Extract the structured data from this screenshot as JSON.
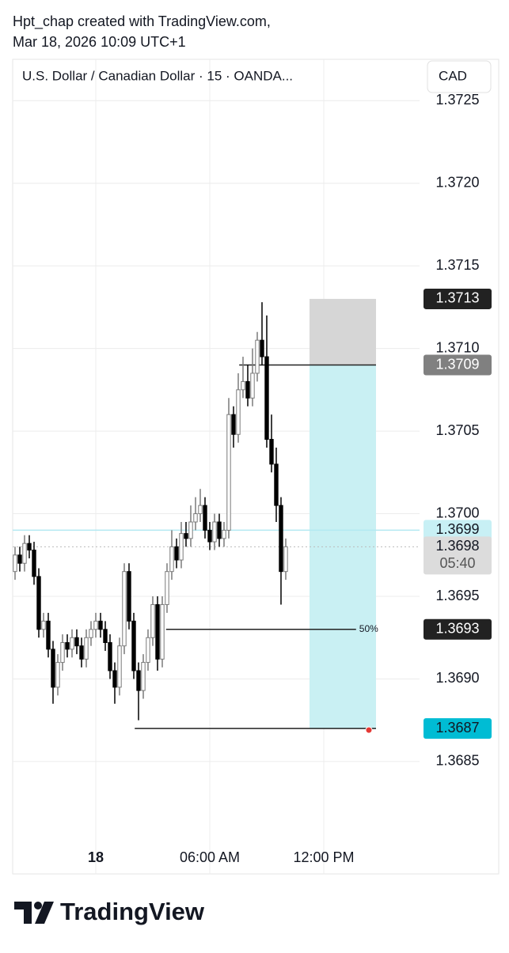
{
  "header": {
    "line1": "Hpt_chap created with TradingView.com,",
    "line2": "Mar 18, 2026 10:09 UTC+1"
  },
  "chart_data": {
    "type": "candlestick",
    "title": "U.S. Dollar / Canadian Dollar · 15 · OANDA...",
    "currency": "CAD",
    "open": [
      1.36965,
      1.36975,
      1.3697,
      1.36982,
      1.36978,
      1.36962,
      1.3693,
      1.36935,
      1.36918,
      1.36895,
      1.3691,
      1.36922,
      1.36918,
      1.36925,
      1.3692,
      1.36912,
      1.36925,
      1.3693,
      1.36935,
      1.3693,
      1.36922,
      1.36905,
      1.36895,
      1.3692,
      1.36965,
      1.36935,
      1.36905,
      1.36893,
      1.3691,
      1.36925,
      1.36945,
      1.36912,
      1.36945,
      1.36965,
      1.3698,
      1.36972,
      1.36988,
      1.36985,
      1.36995,
      1.37,
      1.37005,
      1.3699,
      1.36983,
      1.36995,
      1.36985,
      1.3699,
      1.3706,
      1.37048,
      1.37075,
      1.3708,
      1.3707,
      1.37085,
      1.37105,
      1.37095,
      1.37045,
      1.3703,
      1.37005,
      1.36965
    ],
    "high": [
      1.3698,
      1.3698,
      1.36987,
      1.36987,
      1.36983,
      1.36967,
      1.3694,
      1.3694,
      1.36923,
      1.36915,
      1.36927,
      1.36927,
      1.3693,
      1.3693,
      1.36925,
      1.3693,
      1.36935,
      1.3694,
      1.3694,
      1.36935,
      1.36927,
      1.3691,
      1.36925,
      1.3697,
      1.3697,
      1.3694,
      1.3691,
      1.36915,
      1.3693,
      1.3695,
      1.3695,
      1.3695,
      1.3697,
      1.3699,
      1.36985,
      1.36995,
      1.36995,
      1.37005,
      1.3701,
      1.37015,
      1.3701,
      1.36995,
      1.37,
      1.37,
      1.36995,
      1.3707,
      1.37065,
      1.37085,
      1.37095,
      1.3709,
      1.371,
      1.3711,
      1.37128,
      1.3712,
      1.3706,
      1.3704,
      1.3701,
      1.36985
    ],
    "low": [
      1.3696,
      1.36965,
      1.36965,
      1.36973,
      1.36957,
      1.36925,
      1.36925,
      1.36913,
      1.36885,
      1.3689,
      1.36905,
      1.36913,
      1.36913,
      1.36915,
      1.36907,
      1.36907,
      1.3692,
      1.36925,
      1.36925,
      1.36917,
      1.369,
      1.36885,
      1.3689,
      1.36915,
      1.3693,
      1.369,
      1.36875,
      1.36888,
      1.36905,
      1.3692,
      1.36905,
      1.36907,
      1.3694,
      1.3696,
      1.36967,
      1.36967,
      1.3698,
      1.3698,
      1.3699,
      1.36995,
      1.36985,
      1.36978,
      1.36978,
      1.3698,
      1.3698,
      1.36985,
      1.3704,
      1.37043,
      1.3707,
      1.37065,
      1.37065,
      1.3708,
      1.3709,
      1.3704,
      1.37025,
      1.36995,
      1.36945,
      1.3696
    ],
    "close": [
      1.36975,
      1.3697,
      1.36982,
      1.36978,
      1.36962,
      1.3693,
      1.36935,
      1.36918,
      1.36895,
      1.3691,
      1.36922,
      1.36918,
      1.36925,
      1.3692,
      1.36912,
      1.36925,
      1.3693,
      1.36935,
      1.3693,
      1.36922,
      1.36905,
      1.36895,
      1.3692,
      1.36965,
      1.36935,
      1.36905,
      1.36893,
      1.3691,
      1.36925,
      1.36945,
      1.36912,
      1.36945,
      1.36965,
      1.3698,
      1.36972,
      1.36988,
      1.36985,
      1.36995,
      1.37,
      1.37005,
      1.3699,
      1.36983,
      1.36995,
      1.36985,
      1.3699,
      1.3706,
      1.37048,
      1.37075,
      1.3708,
      1.3707,
      1.37085,
      1.37105,
      1.37095,
      1.37045,
      1.3703,
      1.37005,
      1.36965,
      1.3698
    ],
    "up_color": "#ffffff",
    "up_border": "#7a7a7a",
    "down_color": "#000000",
    "xlim": [
      -0.5,
      85.17
    ],
    "xticks": [
      {
        "value": 17,
        "label": "18"
      },
      {
        "value": 41,
        "label": "06:00 AM"
      },
      {
        "value": 65,
        "label": "12:00 PM"
      }
    ],
    "ylim": [
      1.36782,
      1.37275
    ],
    "yticks": [
      1.3685,
      {
        "value": 1.369,
        "label": "1.3690"
      },
      1.3695,
      {
        "value": 1.37,
        "label": "1.3700"
      },
      1.3705,
      {
        "value": 1.371,
        "label": "1.3710"
      },
      1.3715,
      {
        "value": 1.372,
        "label": "1.3720"
      },
      1.3725
    ],
    "grid": true,
    "position": {
      "stop": 1.3713,
      "entry": 1.3709,
      "target": 1.3687,
      "start": 62,
      "end": 76,
      "entry_from": 47.2,
      "target_from": 25.2,
      "stop_color": "#d6d6d6",
      "target_color": "#c9f0f3"
    },
    "level": {
      "value": 1.3693,
      "x": [
        31.8,
        71.8
      ],
      "label": "50%"
    },
    "alert_line": {
      "value": 1.3699,
      "color": "#b3e9f2"
    },
    "last_price": 1.3698,
    "countdown": "05:40"
  },
  "footer": {
    "logo": "TradingView"
  }
}
